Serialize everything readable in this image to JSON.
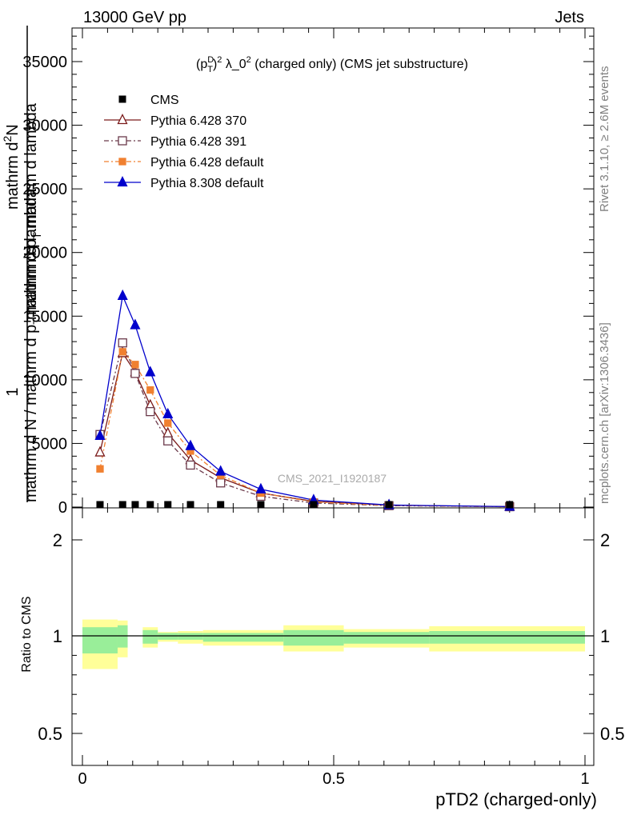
{
  "header": {
    "left": "13000 GeV pp",
    "right": "Jets"
  },
  "side_labels": {
    "rivet": "Rivet 3.1.10, ≥ 2.6M events",
    "mcplots": "mcplots.cern.ch [arXiv:1306.3436]"
  },
  "chart_data": {
    "type": "line",
    "title": "(p_T^D)^2 λ_0^2 (charged only) (CMS jet substructure)",
    "watermark": "CMS_2021_I1920187",
    "xlabel": "pTD2 (charged-only)",
    "ylabel_lines": [
      "1",
      "mathrm d N / mathrm d p_T mathrm d lambda",
      "mathrm d^2N",
      "mathrm d p_T mathrm d lambda"
    ],
    "ylabel_main": {
      "a": "1",
      "b": "mathrm d N / mathrm d p",
      "b_sub": "T",
      "c": " mathrm d lambda"
    },
    "ylabel_over": {
      "num": "mathrm d",
      "num_sup": "2",
      "num2": "N",
      "den": "mathrm d p",
      "den_sub": "T",
      "den2": " mathrm d lambda"
    },
    "ylim": [
      0,
      37000
    ],
    "xlim": [
      -0.02,
      1.02
    ],
    "yticks": [
      0,
      5000,
      10000,
      15000,
      20000,
      25000,
      30000,
      35000
    ],
    "ytick_labels": [
      "0",
      "5000",
      "10000",
      "15000",
      "20000",
      "25000",
      "30000",
      "35000"
    ],
    "xticks": [
      0,
      0.5,
      1
    ],
    "xtick_labels": [
      "0",
      "0.5",
      "1"
    ],
    "ratio": {
      "ylabel": "Ratio to CMS",
      "yticks": [
        0.5,
        1,
        2
      ],
      "ytick_labels": [
        "0.5",
        "1",
        "2"
      ],
      "ylim": [
        0.4,
        2.35
      ],
      "bands": [
        {
          "x0": 0.0,
          "x1": 0.07,
          "inner": [
            0.91,
            1.09
          ],
          "outer": [
            0.83,
            1.17
          ]
        },
        {
          "x0": 0.07,
          "x1": 0.09,
          "inner": [
            0.94,
            1.11
          ],
          "outer": [
            0.89,
            1.16
          ]
        },
        {
          "x0": 0.12,
          "x1": 0.15,
          "inner": [
            0.96,
            1.06
          ],
          "outer": [
            0.94,
            1.09
          ]
        },
        {
          "x0": 0.15,
          "x1": 0.19,
          "inner": [
            0.98,
            1.03
          ],
          "outer": [
            0.97,
            1.04
          ]
        },
        {
          "x0": 0.19,
          "x1": 0.24,
          "inner": [
            0.98,
            1.03
          ],
          "outer": [
            0.96,
            1.05
          ]
        },
        {
          "x0": 0.24,
          "x1": 0.4,
          "inner": [
            0.97,
            1.03
          ],
          "outer": [
            0.95,
            1.06
          ]
        },
        {
          "x0": 0.4,
          "x1": 0.52,
          "inner": [
            0.95,
            1.06
          ],
          "outer": [
            0.92,
            1.11
          ]
        },
        {
          "x0": 0.52,
          "x1": 0.69,
          "inner": [
            0.96,
            1.04
          ],
          "outer": [
            0.94,
            1.07
          ]
        },
        {
          "x0": 0.69,
          "x1": 1.0,
          "inner": [
            0.96,
            1.05
          ],
          "outer": [
            0.92,
            1.1
          ]
        }
      ]
    },
    "cms": {
      "name": "CMS",
      "color": "#000000",
      "x": [
        0.035,
        0.08,
        0.105,
        0.135,
        0.17,
        0.215,
        0.275,
        0.355,
        0.46,
        0.61,
        0.85
      ],
      "y": [
        120,
        150,
        150,
        140,
        120,
        100,
        80,
        50,
        25,
        12,
        5
      ]
    },
    "series": [
      {
        "name": "Pythia 6.428 370",
        "color": "#7a1a1a",
        "dash": "",
        "marker": "triangle-open",
        "x": [
          0.035,
          0.08,
          0.105,
          0.135,
          0.17,
          0.215,
          0.275,
          0.355,
          0.46,
          0.61,
          0.85
        ],
        "y": [
          4300,
          12100,
          10600,
          8000,
          5800,
          3700,
          2300,
          1100,
          450,
          150,
          30
        ]
      },
      {
        "name": "Pythia 6.428 391",
        "color": "#6b3a4b",
        "dash": "6,3,2,3",
        "marker": "square-open",
        "x": [
          0.035,
          0.08,
          0.105,
          0.135,
          0.17,
          0.215,
          0.275,
          0.355,
          0.46,
          0.61,
          0.85
        ],
        "y": [
          5700,
          12900,
          10500,
          7500,
          5200,
          3300,
          1900,
          850,
          320,
          110,
          30
        ]
      },
      {
        "name": "Pythia 6.428 default",
        "color": "#f08030",
        "dash": "6,3,2,3",
        "marker": "square-filled",
        "x": [
          0.035,
          0.08,
          0.105,
          0.135,
          0.17,
          0.215,
          0.275,
          0.355,
          0.46,
          0.61,
          0.85
        ],
        "y": [
          3000,
          12200,
          11200,
          9200,
          6600,
          4400,
          2500,
          1100,
          400,
          130,
          30
        ]
      },
      {
        "name": "Pythia 8.308 default",
        "color": "#0000cc",
        "dash": "",
        "marker": "triangle-filled",
        "x": [
          0.035,
          0.08,
          0.105,
          0.135,
          0.17,
          0.215,
          0.275,
          0.355,
          0.46,
          0.61,
          0.85
        ],
        "y": [
          5600,
          16600,
          14300,
          10600,
          7300,
          4800,
          2800,
          1400,
          550,
          160,
          40
        ]
      }
    ]
  }
}
